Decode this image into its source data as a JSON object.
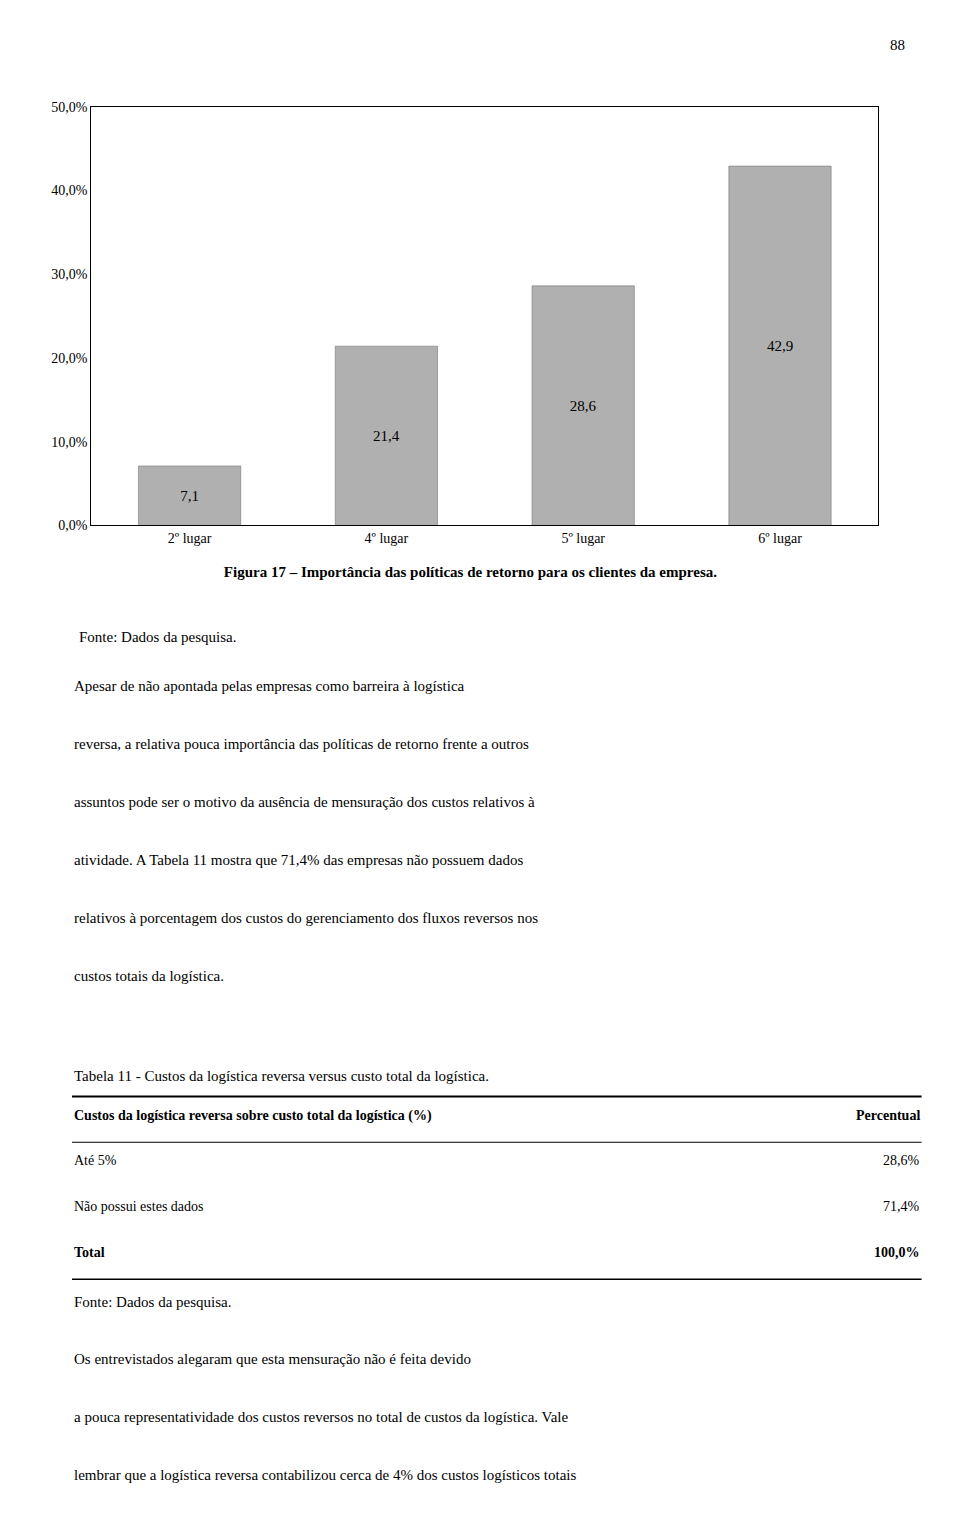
{
  "chart_data": {
    "type": "bar",
    "title": "Figura 17 – Importância das políticas de retorno para os clientes da empresa.",
    "categories": [
      "2º lugar",
      "4º lugar",
      "5º lugar",
      "6º lugar"
    ],
    "values": [
      7.1,
      21.4,
      28.6,
      42.9
    ],
    "value_labels": [
      "7,1",
      "21,4",
      "28,6",
      "42,9"
    ],
    "data_labels": true,
    "color": "#b0b0b0",
    "ylim": [
      0,
      50
    ],
    "yticks": [
      {
        "value": 0,
        "label": "0,0%"
      },
      {
        "value": 10,
        "label": "10,0%"
      },
      {
        "value": 20,
        "label": "20,0%"
      },
      {
        "value": 30,
        "label": "30,0%"
      },
      {
        "value": 40,
        "label": "40,0%"
      },
      {
        "value": 50,
        "label": "50,0%"
      }
    ],
    "grid": false,
    "annotations": [
      "88",
      "Fonte: Dados da pesquisa.",
      "Apesar de não apontada pelas empresas como barreira à logística",
      "reversa, a relativa pouca importância das políticas de retorno frente a outros",
      "assuntos pode ser o motivo da ausência de mensuração dos custos relativos à",
      "atividade. A Tabela 11 mostra que 71,4% das empresas não possuem dados",
      "relativos à porcentagem dos custos do gerenciamento dos fluxos reversos nos",
      "custos totais da logística.",
      "Tabela 11 - Custos da logística reversa versus custo total da logística.",
      [
        "Custos da logística reversa sobre custo total da logística (%)",
        "Percentual"
      ],
      [
        "Até 5%",
        "28,6%"
      ],
      [
        "Não possui estes dados",
        "71,4%"
      ],
      [
        "Total",
        "100,0%"
      ],
      "Fonte: Dados da pesquisa.",
      "Os entrevistados alegaram que esta mensuração não é feita devido",
      "a pouca representatividade dos custos reversos no total de custos da logística. Vale",
      "lembrar que a logística reversa contabilizou cerca de 4% dos custos logísticos totais"
    ]
  }
}
